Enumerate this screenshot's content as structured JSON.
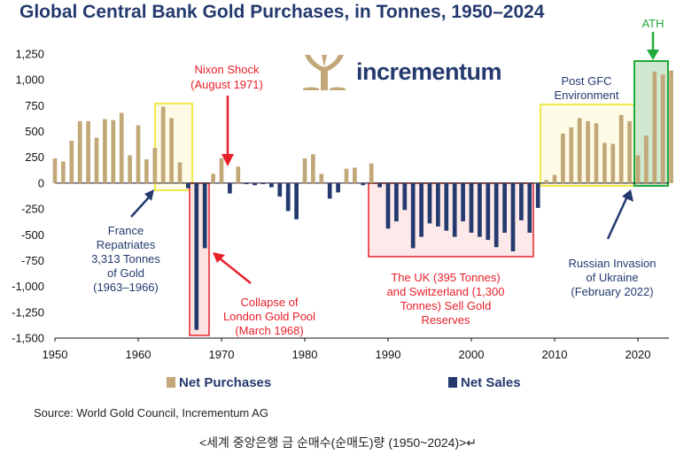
{
  "title": "Global Central Bank Gold Purchases, in Tonnes, 1950–2024",
  "logo_text": "incrementum",
  "source": "Source: World Gold Council, Incrementum AG",
  "caption": "<세계 중앙은행 금 순매수(순매도)량 (1950~2024)>↵",
  "legend": {
    "purchases": "Net Purchases",
    "sales": "Net Sales"
  },
  "colors": {
    "purchases": "#c2a878",
    "sales": "#243a6e",
    "red": "#e8202a",
    "green": "#22aa3a",
    "yellow": "#f2e84a",
    "navy": "#243a6e"
  },
  "annotations": {
    "nixon": [
      "Nixon Shock",
      "(August 1971)"
    ],
    "france": [
      "France",
      "Repatriates",
      "3,313 Tonnes",
      "of Gold",
      "(1963–1966)"
    ],
    "london": [
      "Collapse of",
      "London Gold Pool",
      "(March 1968)"
    ],
    "uk": [
      "The UK (395 Tonnes)",
      "and Switzerland (1,300",
      "Tonnes) Sell Gold",
      "Reserves"
    ],
    "gfc": [
      "Post GFC",
      "Environment"
    ],
    "russia": [
      "Russian Invasion",
      "of Ukraine",
      "(February 2022)"
    ],
    "ath": "ATH"
  },
  "chart_data": {
    "type": "bar",
    "title": "Global Central Bank Gold Purchases, in Tonnes, 1950–2024",
    "xlabel": "",
    "ylabel": "",
    "ylim": [
      -1500,
      1250
    ],
    "xlim": [
      1950,
      2025
    ],
    "yticks": [
      1250,
      1000,
      750,
      500,
      250,
      0,
      -250,
      -500,
      -750,
      -1000,
      -1250,
      -1500
    ],
    "ytick_labels": [
      "1,250",
      "1,000",
      "750",
      "500",
      "250",
      "0",
      "-250",
      "-500",
      "-750",
      "-1,000",
      "-1,250",
      "-1,500"
    ],
    "xticks": [
      1950,
      1960,
      1970,
      1980,
      1990,
      2000,
      2010,
      2020
    ],
    "series": [
      {
        "name": "Net Purchases",
        "color": "#c2a878"
      },
      {
        "name": "Net Sales",
        "color": "#243a6e"
      }
    ],
    "x": [
      1950,
      1951,
      1952,
      1953,
      1954,
      1955,
      1956,
      1957,
      1958,
      1959,
      1960,
      1961,
      1962,
      1963,
      1964,
      1965,
      1966,
      1967,
      1968,
      1969,
      1970,
      1971,
      1972,
      1973,
      1974,
      1975,
      1976,
      1977,
      1978,
      1979,
      1980,
      1981,
      1982,
      1983,
      1984,
      1985,
      1986,
      1987,
      1988,
      1989,
      1990,
      1991,
      1992,
      1993,
      1994,
      1995,
      1996,
      1997,
      1998,
      1999,
      2000,
      2001,
      2002,
      2003,
      2004,
      2005,
      2006,
      2007,
      2008,
      2009,
      2010,
      2011,
      2012,
      2013,
      2014,
      2015,
      2016,
      2017,
      2018,
      2019,
      2020,
      2021,
      2022,
      2023,
      2024
    ],
    "values": [
      240,
      210,
      410,
      600,
      600,
      440,
      620,
      610,
      680,
      270,
      560,
      230,
      340,
      740,
      630,
      200,
      -50,
      -1420,
      -630,
      90,
      240,
      -100,
      160,
      -10,
      -20,
      -10,
      -40,
      -130,
      -270,
      -350,
      240,
      280,
      90,
      -150,
      -90,
      140,
      150,
      -20,
      190,
      -40,
      -440,
      -370,
      -260,
      -630,
      -520,
      -390,
      -420,
      -460,
      -520,
      -370,
      -480,
      -520,
      -550,
      -620,
      -480,
      -660,
      -360,
      -480,
      -240,
      30,
      80,
      480,
      540,
      630,
      600,
      580,
      390,
      380,
      660,
      600,
      270,
      460,
      1080,
      1050,
      1090
    ]
  }
}
